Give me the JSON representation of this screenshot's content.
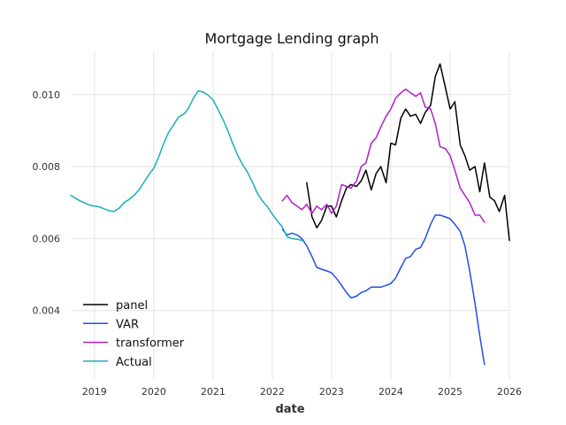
{
  "chart_data": {
    "type": "line",
    "title": "Mortgage Lending graph",
    "xlabel": "date",
    "ylabel": "",
    "xlim": [
      2018.6,
      2026.0
    ],
    "ylim": [
      0.0021,
      0.0112
    ],
    "x_ticks": [
      2019,
      2020,
      2021,
      2022,
      2023,
      2024,
      2025,
      2026
    ],
    "y_ticks": [
      0.004,
      0.006,
      0.008,
      0.01
    ],
    "y_tick_labels": [
      "0.004",
      "0.006",
      "0.008",
      "0.010"
    ],
    "grid": true,
    "legend_position": "lower-left",
    "series": [
      {
        "name": "panel",
        "color": "#000000",
        "points": [
          [
            2022.58,
            0.00755
          ],
          [
            2022.67,
            0.0066
          ],
          [
            2022.75,
            0.0063
          ],
          [
            2022.83,
            0.0065
          ],
          [
            2022.92,
            0.0069
          ],
          [
            2023.0,
            0.0069
          ],
          [
            2023.08,
            0.0066
          ],
          [
            2023.17,
            0.00705
          ],
          [
            2023.25,
            0.0074
          ],
          [
            2023.33,
            0.0075
          ],
          [
            2023.42,
            0.00745
          ],
          [
            2023.5,
            0.0076
          ],
          [
            2023.58,
            0.0079
          ],
          [
            2023.67,
            0.00735
          ],
          [
            2023.75,
            0.0078
          ],
          [
            2023.83,
            0.008
          ],
          [
            2023.92,
            0.00755
          ],
          [
            2024.0,
            0.00865
          ],
          [
            2024.08,
            0.0086
          ],
          [
            2024.17,
            0.00935
          ],
          [
            2024.25,
            0.0096
          ],
          [
            2024.33,
            0.0094
          ],
          [
            2024.42,
            0.00945
          ],
          [
            2024.5,
            0.0092
          ],
          [
            2024.58,
            0.0095
          ],
          [
            2024.67,
            0.0097
          ],
          [
            2024.75,
            0.0105
          ],
          [
            2024.83,
            0.01085
          ],
          [
            2024.92,
            0.0102
          ],
          [
            2025.0,
            0.0096
          ],
          [
            2025.08,
            0.0098
          ],
          [
            2025.17,
            0.0086
          ],
          [
            2025.25,
            0.0083
          ],
          [
            2025.33,
            0.0079
          ],
          [
            2025.42,
            0.008
          ],
          [
            2025.5,
            0.0073
          ],
          [
            2025.58,
            0.0081
          ],
          [
            2025.67,
            0.00715
          ],
          [
            2025.75,
            0.00705
          ],
          [
            2025.83,
            0.00675
          ],
          [
            2025.92,
            0.0072
          ],
          [
            2026.0,
            0.00595
          ]
        ]
      },
      {
        "name": "VAR",
        "color": "#1f4fe6",
        "points": [
          [
            2022.17,
            0.00625
          ],
          [
            2022.25,
            0.0061
          ],
          [
            2022.33,
            0.00615
          ],
          [
            2022.42,
            0.0061
          ],
          [
            2022.5,
            0.006
          ],
          [
            2022.58,
            0.0058
          ],
          [
            2022.67,
            0.0055
          ],
          [
            2022.75,
            0.0052
          ],
          [
            2022.83,
            0.00515
          ],
          [
            2022.92,
            0.0051
          ],
          [
            2023.0,
            0.00505
          ],
          [
            2023.08,
            0.0049
          ],
          [
            2023.17,
            0.0047
          ],
          [
            2023.25,
            0.0045
          ],
          [
            2023.33,
            0.00435
          ],
          [
            2023.42,
            0.0044
          ],
          [
            2023.5,
            0.0045
          ],
          [
            2023.58,
            0.00455
          ],
          [
            2023.67,
            0.00465
          ],
          [
            2023.75,
            0.00465
          ],
          [
            2023.83,
            0.00465
          ],
          [
            2023.92,
            0.0047
          ],
          [
            2024.0,
            0.00475
          ],
          [
            2024.08,
            0.0049
          ],
          [
            2024.17,
            0.0052
          ],
          [
            2024.25,
            0.00545
          ],
          [
            2024.33,
            0.0055
          ],
          [
            2024.42,
            0.0057
          ],
          [
            2024.5,
            0.00575
          ],
          [
            2024.58,
            0.006
          ],
          [
            2024.67,
            0.0064
          ],
          [
            2024.75,
            0.00665
          ],
          [
            2024.83,
            0.00665
          ],
          [
            2024.92,
            0.0066
          ],
          [
            2025.0,
            0.00655
          ],
          [
            2025.08,
            0.0064
          ],
          [
            2025.17,
            0.0062
          ],
          [
            2025.25,
            0.0058
          ],
          [
            2025.33,
            0.0051
          ],
          [
            2025.42,
            0.0042
          ],
          [
            2025.5,
            0.0033
          ],
          [
            2025.58,
            0.0025
          ]
        ]
      },
      {
        "name": "transformer",
        "color": "#b01ecb",
        "points": [
          [
            2022.17,
            0.00705
          ],
          [
            2022.25,
            0.0072
          ],
          [
            2022.33,
            0.007
          ],
          [
            2022.42,
            0.0069
          ],
          [
            2022.5,
            0.0068
          ],
          [
            2022.58,
            0.00695
          ],
          [
            2022.67,
            0.0067
          ],
          [
            2022.75,
            0.0069
          ],
          [
            2022.83,
            0.0068
          ],
          [
            2022.92,
            0.00695
          ],
          [
            2023.0,
            0.0067
          ],
          [
            2023.08,
            0.0069
          ],
          [
            2023.17,
            0.0075
          ],
          [
            2023.25,
            0.00745
          ],
          [
            2023.33,
            0.0074
          ],
          [
            2023.42,
            0.0076
          ],
          [
            2023.5,
            0.008
          ],
          [
            2023.58,
            0.0081
          ],
          [
            2023.67,
            0.00865
          ],
          [
            2023.75,
            0.0088
          ],
          [
            2023.83,
            0.0091
          ],
          [
            2023.92,
            0.0094
          ],
          [
            2024.0,
            0.0096
          ],
          [
            2024.08,
            0.0099
          ],
          [
            2024.17,
            0.01005
          ],
          [
            2024.25,
            0.01015
          ],
          [
            2024.33,
            0.01005
          ],
          [
            2024.42,
            0.00995
          ],
          [
            2024.5,
            0.01005
          ],
          [
            2024.58,
            0.00965
          ],
          [
            2024.67,
            0.0096
          ],
          [
            2024.75,
            0.0092
          ],
          [
            2024.83,
            0.00855
          ],
          [
            2024.92,
            0.0085
          ],
          [
            2025.0,
            0.0083
          ],
          [
            2025.08,
            0.0079
          ],
          [
            2025.17,
            0.0074
          ],
          [
            2025.25,
            0.0072
          ],
          [
            2025.33,
            0.007
          ],
          [
            2025.42,
            0.00665
          ],
          [
            2025.5,
            0.00665
          ],
          [
            2025.58,
            0.00645
          ]
        ]
      },
      {
        "name": "Actual",
        "color": "#17aebd",
        "points": [
          [
            2018.6,
            0.0072
          ],
          [
            2018.75,
            0.00705
          ],
          [
            2018.92,
            0.00693
          ],
          [
            2019.0,
            0.0069
          ],
          [
            2019.08,
            0.00688
          ],
          [
            2019.17,
            0.00682
          ],
          [
            2019.25,
            0.00677
          ],
          [
            2019.33,
            0.00675
          ],
          [
            2019.42,
            0.00685
          ],
          [
            2019.5,
            0.007
          ],
          [
            2019.58,
            0.00708
          ],
          [
            2019.67,
            0.0072
          ],
          [
            2019.75,
            0.00735
          ],
          [
            2019.83,
            0.00755
          ],
          [
            2019.92,
            0.00778
          ],
          [
            2020.0,
            0.00795
          ],
          [
            2020.08,
            0.00825
          ],
          [
            2020.17,
            0.00865
          ],
          [
            2020.25,
            0.00895
          ],
          [
            2020.33,
            0.00915
          ],
          [
            2020.42,
            0.00938
          ],
          [
            2020.5,
            0.00945
          ],
          [
            2020.58,
            0.0096
          ],
          [
            2020.67,
            0.0099
          ],
          [
            2020.75,
            0.0101
          ],
          [
            2020.83,
            0.01007
          ],
          [
            2020.92,
            0.00998
          ],
          [
            2021.0,
            0.00985
          ],
          [
            2021.08,
            0.0096
          ],
          [
            2021.17,
            0.0093
          ],
          [
            2021.25,
            0.009
          ],
          [
            2021.33,
            0.00865
          ],
          [
            2021.42,
            0.0083
          ],
          [
            2021.5,
            0.00805
          ],
          [
            2021.58,
            0.00785
          ],
          [
            2021.67,
            0.00755
          ],
          [
            2021.75,
            0.00725
          ],
          [
            2021.83,
            0.00705
          ],
          [
            2021.92,
            0.00688
          ],
          [
            2022.0,
            0.00668
          ],
          [
            2022.08,
            0.0065
          ],
          [
            2022.17,
            0.00632
          ],
          [
            2022.25,
            0.00605
          ],
          [
            2022.33,
            0.006
          ],
          [
            2022.42,
            0.00598
          ],
          [
            2022.5,
            0.00595
          ]
        ]
      }
    ]
  }
}
